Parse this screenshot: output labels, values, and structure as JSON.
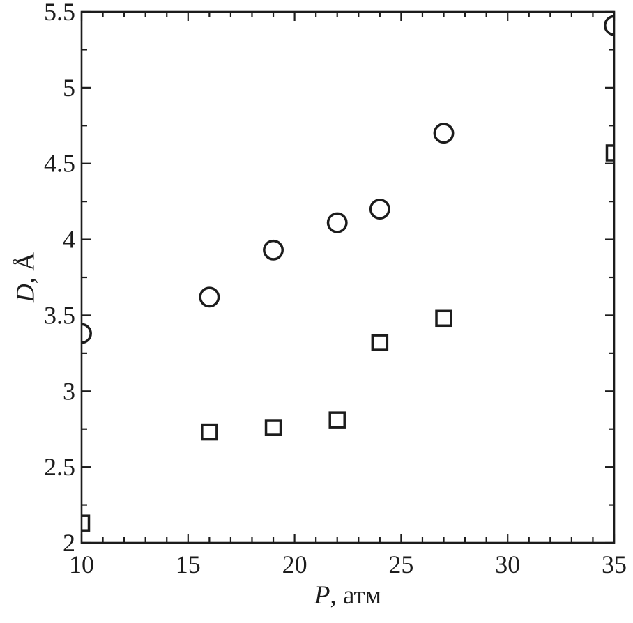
{
  "figure": {
    "background": "#ffffff",
    "ink_color": "#1c1c1c"
  },
  "chart_data": {
    "type": "scatter",
    "title": "",
    "xlabel": "P, атм",
    "xlabel_var": "P",
    "xlabel_rest": ", атм",
    "ylabel": "D, Å",
    "ylabel_var": "D",
    "ylabel_rest": ", Å",
    "xlim": [
      10,
      35
    ],
    "ylim": [
      2,
      5.5
    ],
    "x_major_ticks": [
      10,
      15,
      20,
      25,
      30,
      35
    ],
    "x_tick_labels": [
      "10",
      "15",
      "20",
      "25",
      "30",
      "35"
    ],
    "x_minor_step": 1,
    "y_major_ticks": [
      2,
      2.5,
      3,
      3.5,
      4,
      4.5,
      5,
      5.5
    ],
    "y_tick_labels": [
      "2",
      "2.5",
      "3",
      "3.5",
      "4",
      "4.5",
      "5",
      "5.5"
    ],
    "y_minor_step": 0.25,
    "grid": false,
    "legend": "none",
    "frame": "box-with-mirrored-inward-ticks",
    "series": [
      {
        "name": "circle-series",
        "marker": "circle",
        "fill": "open",
        "x": [
          10,
          16,
          19,
          22,
          24,
          27,
          35
        ],
        "y": [
          3.38,
          3.62,
          3.93,
          4.11,
          4.2,
          4.7,
          5.41
        ]
      },
      {
        "name": "square-series",
        "marker": "square",
        "fill": "open",
        "x": [
          10,
          16,
          19,
          22,
          24,
          27,
          35
        ],
        "y": [
          2.13,
          2.73,
          2.76,
          2.81,
          3.32,
          3.48,
          4.57
        ]
      }
    ]
  }
}
